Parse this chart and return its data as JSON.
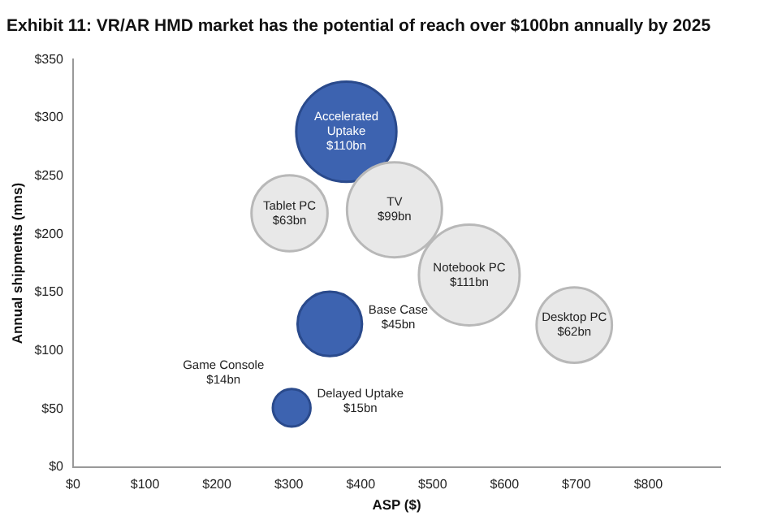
{
  "chart_data": {
    "type": "bubble",
    "title": "Exhibit 11: VR/AR HMD market has the potential of reach over $100bn annually by 2025",
    "xlabel": "ASP ($)",
    "ylabel": "Annual shipments (mns)",
    "x": [
      380,
      301,
      447,
      551,
      697,
      357,
      304
    ],
    "values": [
      288,
      218,
      221,
      165,
      122,
      123,
      51
    ],
    "sizes": [
      0.99,
      0.57,
      0.89,
      1,
      0.56,
      0.41,
      0.14
    ],
    "colors": [
      "#3d63b0",
      "#e8e8e8",
      "#e8e8e8",
      "#e8e8e8",
      "#e8e8e8",
      "#3d63b0",
      "#3d63b0"
    ],
    "value_labels": [
      "Accelerated\nUptake\n$110bn",
      "Tablet PC\n$63bn",
      "TV\n$99bn",
      "Notebook PC\n$111bn",
      "Desktop PC\n$62bn",
      "Base Case\n$45bn",
      "Delayed Uptake\n$15bn"
    ],
    "annotations": [
      {
        "text": "Game Console\n$14bn",
        "x": 304,
        "y": 51
      }
    ],
    "xlim": [
      0,
      900
    ],
    "xticks": [
      {
        "value": 0,
        "label": "$0"
      },
      {
        "value": 100,
        "label": "$100"
      },
      {
        "value": 200,
        "label": "$200"
      },
      {
        "value": 300,
        "label": "$300"
      },
      {
        "value": 400,
        "label": "$400"
      },
      {
        "value": 500,
        "label": "$500"
      },
      {
        "value": 600,
        "label": "$600"
      },
      {
        "value": 700,
        "label": "$700"
      },
      {
        "value": 800,
        "label": "$800"
      }
    ],
    "ylim": [
      0,
      350
    ],
    "yticks": [
      {
        "value": 0,
        "label": "$0"
      },
      {
        "value": 50,
        "label": "$50"
      },
      {
        "value": 100,
        "label": "$100"
      },
      {
        "value": 150,
        "label": "$150"
      },
      {
        "value": 200,
        "label": "$200"
      },
      {
        "value": 250,
        "label": "$250"
      },
      {
        "value": 300,
        "label": "$300"
      },
      {
        "value": 350,
        "label": "$350"
      }
    ]
  }
}
